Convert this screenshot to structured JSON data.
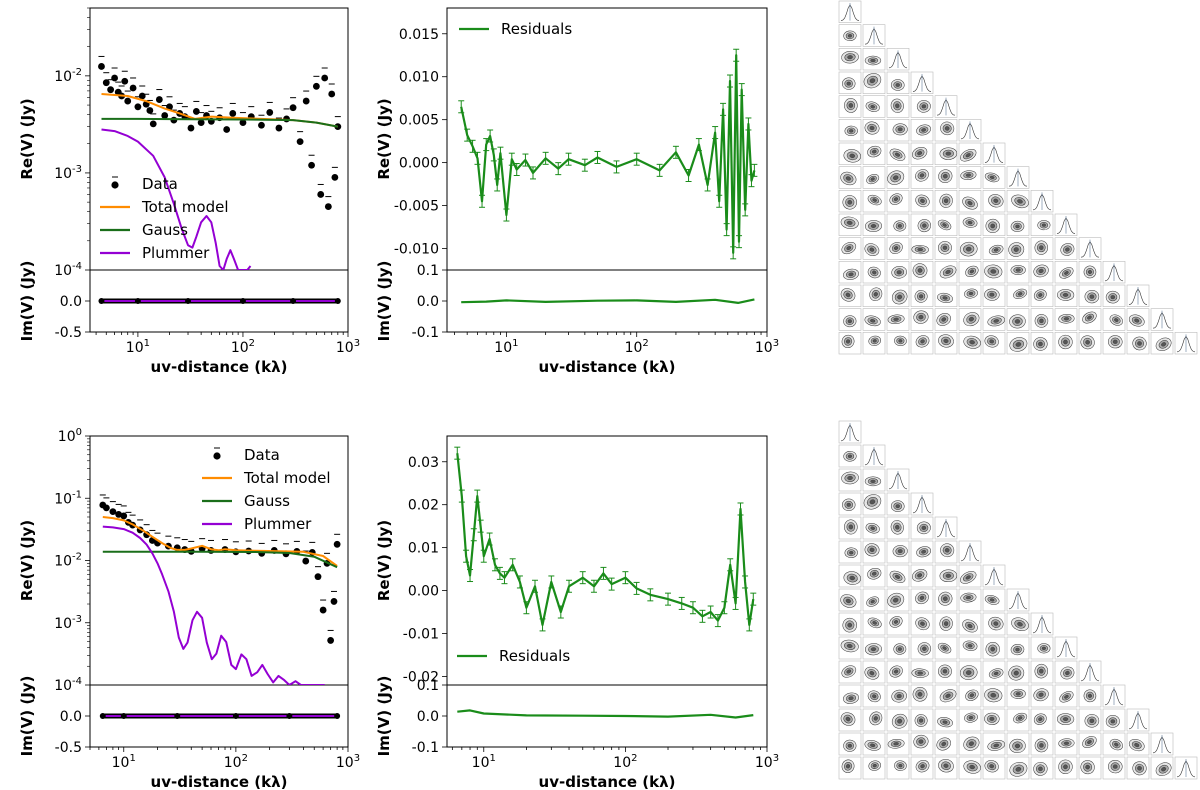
{
  "colors": {
    "data": "#000000",
    "total_model": "#ff8c00",
    "gauss": "#1a6e1a",
    "plummer": "#9400d3",
    "residuals": "#1a8c1a",
    "corner_contour": "#333333",
    "corner_hist": "#607a99"
  },
  "chart_data": [
    {
      "id": "top-left",
      "type": "scatter",
      "xlabel": "uv-distance (kλ)",
      "ylabel_main": "Re(V) (Jy)",
      "ylabel_sub": "Im(V) (Jy)",
      "xscale": "log",
      "xlim": [
        3.5,
        1000
      ],
      "xtick_labels": [
        {
          "base": "10",
          "exp": "1"
        },
        {
          "base": "10",
          "exp": "2"
        },
        {
          "base": "10",
          "exp": "3"
        }
      ],
      "yscale_main": "log",
      "ylim_main": [
        0.0001,
        0.05
      ],
      "ytick_labels_main": [
        {
          "base": "10",
          "exp": "-2"
        },
        {
          "base": "10",
          "exp": "-3"
        },
        {
          "base": "10",
          "exp": "-4"
        }
      ],
      "ylim_sub": [
        -0.5,
        0.5
      ],
      "ytick_labels_sub": [
        "0.0",
        "-0.5"
      ],
      "legend": {
        "position": "lower-left",
        "entries": [
          "Data",
          "Total model",
          "Gauss",
          "Plummer"
        ]
      },
      "series": [
        {
          "name": "Total model",
          "x": [
            4.5,
            8,
            12,
            18,
            25,
            35,
            50,
            80,
            150,
            300,
            500,
            800
          ],
          "y": [
            0.0065,
            0.0062,
            0.0055,
            0.0046,
            0.0041,
            0.0036,
            0.0038,
            0.0037,
            0.0036,
            0.0035,
            0.0033,
            0.003
          ]
        },
        {
          "name": "Gauss",
          "x": [
            4.5,
            10,
            30,
            100,
            300,
            500,
            800
          ],
          "y": [
            0.0036,
            0.0036,
            0.00358,
            0.00355,
            0.0035,
            0.0033,
            0.003
          ]
        },
        {
          "name": "Plummer",
          "x": [
            4.5,
            6,
            8,
            10,
            14,
            18,
            22,
            26,
            30,
            33,
            36,
            40,
            45,
            50,
            55,
            60,
            65,
            70,
            76,
            82,
            90,
            100,
            110,
            118
          ],
          "y": [
            0.0028,
            0.0027,
            0.0024,
            0.0021,
            0.0015,
            0.0009,
            0.00048,
            0.00027,
            0.00018,
            0.00017,
            0.00022,
            0.00031,
            0.00036,
            0.00031,
            0.00019,
            0.00011,
            0.0001,
            0.00013,
            0.00016,
            0.00013,
            0.0001,
            0.0001,
            0.0001,
            0.00011
          ]
        },
        {
          "name": "Data",
          "x": [
            4.5,
            5,
            5.5,
            6,
            6.5,
            7,
            7.5,
            8,
            9,
            10,
            11,
            12,
            13,
            14,
            16,
            18,
            20,
            22,
            25,
            28,
            32,
            36,
            40,
            45,
            50,
            60,
            70,
            80,
            100,
            120,
            150,
            180,
            220,
            260,
            300,
            350,
            400,
            450,
            500,
            550,
            600,
            650,
            700,
            750,
            800
          ],
          "y": [
            0.0125,
            0.0085,
            0.0072,
            0.0095,
            0.0068,
            0.0062,
            0.0088,
            0.0055,
            0.0075,
            0.0048,
            0.0062,
            0.0051,
            0.0044,
            0.0032,
            0.0057,
            0.0039,
            0.0048,
            0.0035,
            0.0041,
            0.0038,
            0.0029,
            0.0043,
            0.0033,
            0.0039,
            0.0034,
            0.0037,
            0.0028,
            0.0041,
            0.0033,
            0.0038,
            0.0031,
            0.0042,
            0.0029,
            0.0036,
            0.0047,
            0.0021,
            0.0055,
            0.0012,
            0.0078,
            0.0006,
            0.0095,
            0.00045,
            0.0065,
            0.0009,
            0.003
          ]
        },
        {
          "name": "Data (imaginary)",
          "x": [
            4.5,
            10,
            30,
            100,
            300,
            800
          ],
          "y": [
            0,
            0,
            0,
            0,
            0,
            0
          ]
        }
      ]
    },
    {
      "id": "top-middle",
      "type": "line",
      "xlabel": "uv-distance (kλ)",
      "ylabel_main": "Re(V) (Jy)",
      "ylabel_sub": "Im(V) (Jy)",
      "xscale": "log",
      "xlim": [
        3.5,
        1000
      ],
      "xtick_labels": [
        {
          "base": "10",
          "exp": "1"
        },
        {
          "base": "10",
          "exp": "2"
        },
        {
          "base": "10",
          "exp": "3"
        }
      ],
      "ylim_main": [
        -0.0125,
        0.018
      ],
      "ytick_labels_main": [
        "0.015",
        "0.010",
        "0.005",
        "0.000",
        "-0.005",
        "-0.010"
      ],
      "ylim_sub": [
        -0.1,
        0.1
      ],
      "ytick_labels_sub": [
        "0.1",
        "0.0",
        "-0.1"
      ],
      "legend": {
        "position": "upper-left",
        "entries": [
          "Residuals"
        ]
      },
      "series": [
        {
          "name": "Residuals",
          "x": [
            4.5,
            5,
            5.5,
            6,
            6.5,
            7,
            7.5,
            8,
            8.5,
            9,
            10,
            11,
            12,
            14,
            16,
            20,
            25,
            30,
            40,
            50,
            70,
            100,
            150,
            200,
            250,
            300,
            350,
            400,
            430,
            460,
            490,
            520,
            550,
            580,
            610,
            640,
            680,
            720,
            760,
            800
          ],
          "y": [
            0.0065,
            0.0032,
            0.0019,
            0.0005,
            -0.0045,
            0.0021,
            0.0031,
            0.0009,
            -0.0026,
            0.0011,
            -0.0061,
            0.0004,
            -0.0008,
            0.0003,
            -0.0012,
            0.0005,
            -0.0007,
            0.0004,
            -0.0003,
            0.0006,
            -0.0005,
            0.0004,
            -0.0009,
            0.0012,
            -0.0015,
            0.0021,
            -0.0026,
            0.0035,
            -0.0045,
            0.0062,
            -0.0078,
            0.0095,
            -0.0105,
            0.0125,
            -0.0092,
            0.0085,
            -0.0055,
            0.0045,
            -0.0021,
            -0.0009
          ]
        },
        {
          "name": "Residuals (imaginary)",
          "x": [
            4.5,
            7,
            10,
            20,
            50,
            100,
            200,
            400,
            600,
            800
          ],
          "y": [
            -0.004,
            -0.002,
            0.002,
            -0.003,
            0.001,
            0.002,
            -0.003,
            0.004,
            -0.006,
            0.005
          ]
        }
      ]
    },
    {
      "id": "bottom-left",
      "type": "scatter",
      "xlabel": "uv-distance (kλ)",
      "ylabel_main": "Re(V) (Jy)",
      "ylabel_sub": "Im(V) (Jy)",
      "xscale": "log",
      "xlim": [
        5,
        1000
      ],
      "xtick_labels": [
        {
          "base": "10",
          "exp": "1"
        },
        {
          "base": "10",
          "exp": "2"
        },
        {
          "base": "10",
          "exp": "3"
        }
      ],
      "yscale_main": "log",
      "ylim_main": [
        0.0001,
        1
      ],
      "ytick_labels_main": [
        {
          "base": "10",
          "exp": "0"
        },
        {
          "base": "10",
          "exp": "-1"
        },
        {
          "base": "10",
          "exp": "-2"
        },
        {
          "base": "10",
          "exp": "-3"
        },
        {
          "base": "10",
          "exp": "-4"
        }
      ],
      "ylim_sub": [
        -0.5,
        0.5
      ],
      "ytick_labels_sub": [
        "0.0",
        "-0.5"
      ],
      "legend": {
        "position": "upper-right",
        "entries": [
          "Data",
          "Total model",
          "Gauss",
          "Plummer"
        ]
      },
      "series": [
        {
          "name": "Total model",
          "x": [
            6.5,
            8,
            10,
            12,
            15,
            18,
            22,
            26,
            30,
            35,
            40,
            50,
            60,
            70,
            80,
            100,
            150,
            250,
            400,
            600,
            800
          ],
          "y": [
            0.05,
            0.048,
            0.044,
            0.038,
            0.03,
            0.024,
            0.019,
            0.016,
            0.0148,
            0.0148,
            0.0156,
            0.0172,
            0.0152,
            0.0146,
            0.0152,
            0.0146,
            0.0143,
            0.0141,
            0.0138,
            0.0118,
            0.0082
          ]
        },
        {
          "name": "Gauss",
          "x": [
            6.5,
            10,
            50,
            150,
            300,
            500,
            800
          ],
          "y": [
            0.0138,
            0.0138,
            0.0138,
            0.0137,
            0.0132,
            0.0115,
            0.0078
          ]
        },
        {
          "name": "Plummer",
          "x": [
            6.5,
            8,
            10,
            12,
            14,
            16,
            18,
            20,
            22,
            25,
            28,
            31,
            34,
            37,
            41,
            45,
            50,
            55,
            61,
            67,
            74,
            82,
            91,
            100,
            112,
            124,
            138,
            155,
            172,
            192,
            215,
            240,
            270,
            300,
            340,
            380,
            430,
            490,
            550,
            620
          ],
          "y": [
            0.035,
            0.034,
            0.032,
            0.028,
            0.023,
            0.018,
            0.013,
            0.009,
            0.006,
            0.0032,
            0.0015,
            0.00058,
            0.00038,
            0.00048,
            0.0011,
            0.0015,
            0.0012,
            0.00048,
            0.00026,
            0.00032,
            0.00062,
            0.00049,
            0.00021,
            0.00018,
            0.00031,
            0.00026,
            0.00014,
            0.00016,
            0.00021,
            0.00015,
            0.00011,
            0.00014,
            0.00012,
            0.0001,
            0.000115,
            0.0001,
            0.0001,
            0.0001,
            0.0001,
            0.0001
          ]
        },
        {
          "name": "Data",
          "x": [
            6.5,
            7,
            8,
            9,
            10,
            11,
            12,
            14,
            16,
            18,
            20,
            25,
            30,
            35,
            40,
            50,
            60,
            80,
            100,
            130,
            170,
            220,
            280,
            350,
            420,
            480,
            540,
            600,
            650,
            700,
            750,
            800
          ],
          "y": [
            0.078,
            0.07,
            0.061,
            0.055,
            0.052,
            0.041,
            0.037,
            0.031,
            0.026,
            0.021,
            0.019,
            0.017,
            0.016,
            0.015,
            0.014,
            0.0155,
            0.0145,
            0.015,
            0.0138,
            0.0142,
            0.013,
            0.0145,
            0.0128,
            0.014,
            0.0098,
            0.0135,
            0.0055,
            0.0016,
            0.009,
            0.00052,
            0.0022,
            0.0182
          ]
        },
        {
          "name": "Data (imaginary)",
          "x": [
            6.5,
            10,
            30,
            100,
            300,
            800
          ],
          "y": [
            0,
            0,
            0,
            0,
            0,
            0
          ]
        }
      ]
    },
    {
      "id": "bottom-middle",
      "type": "line",
      "xlabel": "uv-distance (kλ)",
      "ylabel_main": "Re(V) (Jy)",
      "ylabel_sub": "Im(V) (Jy)",
      "xscale": "log",
      "xlim": [
        5.5,
        1000
      ],
      "xtick_labels": [
        {
          "base": "10",
          "exp": "1"
        },
        {
          "base": "10",
          "exp": "2"
        },
        {
          "base": "10",
          "exp": "3"
        }
      ],
      "ylim_main": [
        -0.022,
        0.036
      ],
      "ytick_labels_main": [
        "0.03",
        "0.02",
        "0.01",
        "0.00",
        "-0.01",
        "-0.02"
      ],
      "ylim_sub": [
        -0.1,
        0.1
      ],
      "ytick_labels_sub": [
        "0.1",
        "0.0",
        "-0.1"
      ],
      "legend": {
        "position": "lower-left",
        "entries": [
          "Residuals"
        ]
      },
      "series": [
        {
          "name": "Residuals",
          "x": [
            6.5,
            7,
            7.5,
            8,
            8.5,
            9,
            9.5,
            10,
            11,
            12,
            13,
            14,
            16,
            18,
            20,
            23,
            26,
            30,
            35,
            40,
            50,
            60,
            70,
            80,
            100,
            120,
            150,
            200,
            250,
            300,
            350,
            400,
            450,
            500,
            550,
            600,
            650,
            700,
            750,
            800
          ],
          "y": [
            0.032,
            0.022,
            0.008,
            0.0035,
            0.013,
            0.022,
            0.015,
            0.008,
            0.012,
            0.006,
            0.004,
            0.003,
            0.006,
            0.002,
            -0.004,
            0.001,
            -0.008,
            0.002,
            -0.005,
            0.001,
            0.003,
            0.001,
            0.004,
            0.0015,
            0.003,
            0.0005,
            -0.001,
            -0.002,
            -0.003,
            -0.004,
            -0.006,
            -0.005,
            -0.007,
            -0.004,
            0.006,
            -0.003,
            0.019,
            0.002,
            -0.008,
            -0.002
          ]
        },
        {
          "name": "Residuals (imaginary)",
          "x": [
            6.5,
            8,
            10,
            20,
            50,
            100,
            200,
            400,
            600,
            800
          ],
          "y": [
            0.014,
            0.018,
            0.008,
            0.002,
            0.001,
            0.0,
            -0.002,
            0.004,
            -0.005,
            0.003
          ]
        }
      ]
    }
  ],
  "corner_top": {
    "n_params": 15
  },
  "corner_bottom": {
    "n_params": 15
  }
}
